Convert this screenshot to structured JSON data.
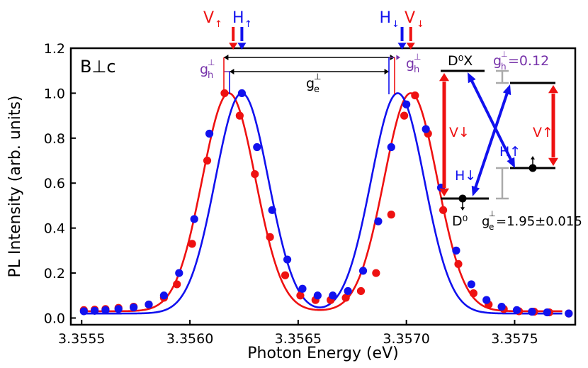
{
  "chart_data": {
    "type": "scatter",
    "title": "",
    "xlabel": "Photon Energy (eV)",
    "ylabel": "PL Intensity (arb. units)",
    "xlim": [
      3.35545,
      3.35778
    ],
    "ylim": [
      -0.03,
      1.2
    ],
    "xticks": [
      3.3555,
      3.356,
      3.3565,
      3.357,
      3.3575
    ],
    "xtick_labels": [
      "3.3555",
      "3.3560",
      "3.3565",
      "3.3570",
      "3.3575"
    ],
    "yticks": [
      0.0,
      0.2,
      0.4,
      0.6,
      0.8,
      1.0,
      1.2
    ],
    "ytick_labels": [
      "0.0",
      "0.2",
      "0.4",
      "0.6",
      "0.8",
      "1.0",
      "1.2"
    ],
    "orientation_label": "B⊥c",
    "colors": {
      "red": "#ee1111",
      "blue": "#1111ee",
      "purple": "#7733aa",
      "gray": "#aaaaaa",
      "black": "#000000"
    },
    "series": [
      {
        "name": "V (red)",
        "color": "#ee1111",
        "points": [
          [
            3.35551,
            0.035
          ],
          [
            3.35556,
            0.037
          ],
          [
            3.35561,
            0.04
          ],
          [
            3.35567,
            0.045
          ],
          [
            3.35574,
            0.05
          ],
          [
            3.35581,
            0.06
          ],
          [
            3.35588,
            0.09
          ],
          [
            3.35594,
            0.15
          ],
          [
            3.35601,
            0.33
          ],
          [
            3.35608,
            0.7
          ],
          [
            3.35616,
            1.0
          ],
          [
            3.35623,
            0.9
          ],
          [
            3.3563,
            0.64
          ],
          [
            3.35637,
            0.36
          ],
          [
            3.35644,
            0.19
          ],
          [
            3.35651,
            0.1
          ],
          [
            3.35658,
            0.08
          ],
          [
            3.35665,
            0.08
          ],
          [
            3.35672,
            0.09
          ],
          [
            3.35679,
            0.12
          ],
          [
            3.35686,
            0.2
          ],
          [
            3.35693,
            0.46
          ],
          [
            3.35699,
            0.9
          ],
          [
            3.35704,
            0.99
          ],
          [
            3.3571,
            0.82
          ],
          [
            3.35717,
            0.48
          ],
          [
            3.35724,
            0.24
          ],
          [
            3.35731,
            0.11
          ],
          [
            3.35738,
            0.06
          ],
          [
            3.35745,
            0.04
          ],
          [
            3.35752,
            0.03
          ],
          [
            3.35759,
            0.028
          ],
          [
            3.35766,
            0.025
          ],
          [
            3.35775,
            0.02
          ]
        ],
        "fit_peaks": [
          3.35618,
          3.35702
        ],
        "fit_width": 0.000123,
        "fit_baseline": 0.03
      },
      {
        "name": "H (blue)",
        "color": "#1111ee",
        "points": [
          [
            3.35551,
            0.03
          ],
          [
            3.35556,
            0.032
          ],
          [
            3.35561,
            0.035
          ],
          [
            3.35567,
            0.04
          ],
          [
            3.35574,
            0.047
          ],
          [
            3.35581,
            0.06
          ],
          [
            3.35588,
            0.1
          ],
          [
            3.35595,
            0.2
          ],
          [
            3.35602,
            0.44
          ],
          [
            3.35609,
            0.82
          ],
          [
            3.35624,
            1.0
          ],
          [
            3.35631,
            0.76
          ],
          [
            3.35638,
            0.48
          ],
          [
            3.35645,
            0.26
          ],
          [
            3.35652,
            0.13
          ],
          [
            3.35659,
            0.1
          ],
          [
            3.35666,
            0.1
          ],
          [
            3.35673,
            0.12
          ],
          [
            3.3568,
            0.21
          ],
          [
            3.35687,
            0.43
          ],
          [
            3.35693,
            0.76
          ],
          [
            3.357,
            0.95
          ],
          [
            3.35709,
            0.84
          ],
          [
            3.35716,
            0.58
          ],
          [
            3.35723,
            0.3
          ],
          [
            3.3573,
            0.15
          ],
          [
            3.35737,
            0.08
          ],
          [
            3.35744,
            0.05
          ],
          [
            3.35751,
            0.035
          ],
          [
            3.35758,
            0.028
          ],
          [
            3.35765,
            0.025
          ],
          [
            3.35775,
            0.02
          ]
        ],
        "fit_peaks": [
          3.35624,
          3.35696
        ],
        "fit_width": 0.000123,
        "fit_baseline": 0.02
      }
    ],
    "annotations": {
      "top_labels": [
        {
          "id": "v-up",
          "base": "V",
          "arrow": "↑",
          "color": "#ee1111",
          "x": 3.3562
        },
        {
          "id": "h-up",
          "base": "H",
          "arrow": "↑",
          "color": "#1111ee",
          "x": 3.35624
        },
        {
          "id": "h-down",
          "base": "H",
          "arrow": "↓",
          "color": "#1111ee",
          "x": 3.35698
        },
        {
          "id": "v-down",
          "base": "V",
          "arrow": "↓",
          "color": "#ee1111",
          "x": 3.35702
        }
      ],
      "gh_label": "g",
      "gh_sub": "h",
      "gh_sup": "⊥",
      "ge_label": "g",
      "ge_sub": "e",
      "ge_sup": "⊥",
      "energy_diagram": {
        "d0x_label": "D⁰X",
        "gh_value_text": "=0.12",
        "d0_label": "D⁰",
        "ge_value_text": "=1.95±0.015",
        "v_down_label": "V↓",
        "v_up_label": "V↑",
        "h_up_label": "H↑",
        "h_down_label": "H↓"
      }
    }
  }
}
